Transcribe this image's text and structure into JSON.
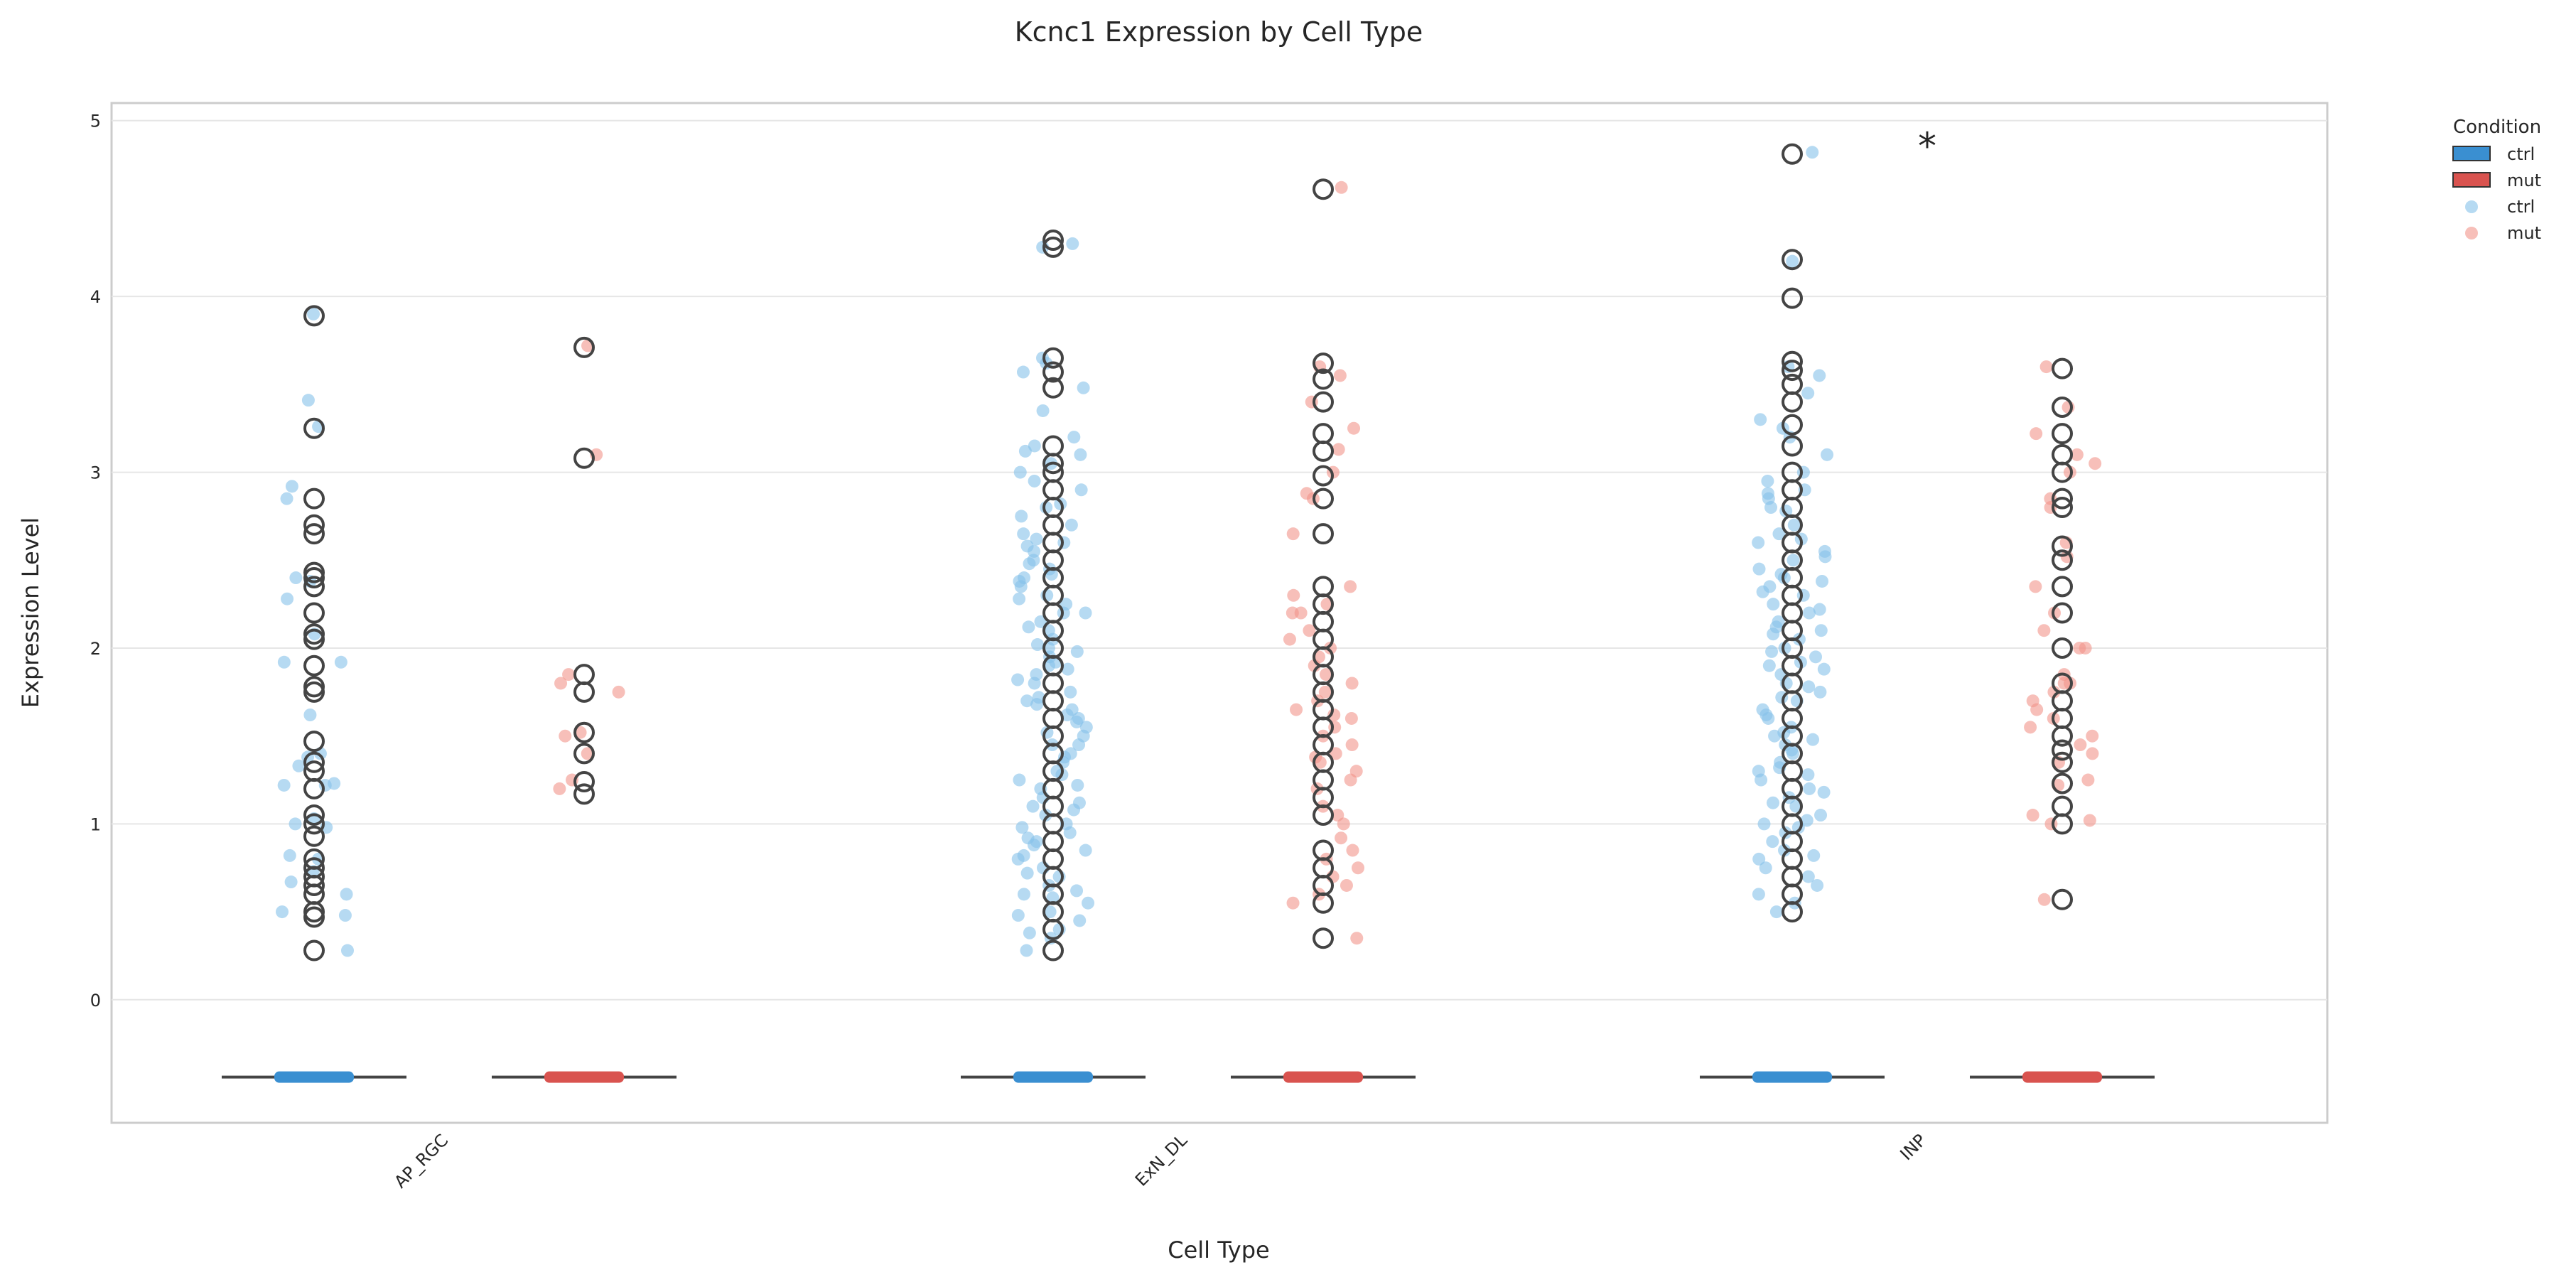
{
  "chart_data": {
    "type": "box",
    "title": "Kcnc1 Expression by Cell Type",
    "xlabel": "Cell Type",
    "ylabel": "Expression Level",
    "ylim": [
      -0.7,
      5.1
    ],
    "yticks": [
      0,
      1,
      2,
      3,
      4,
      5
    ],
    "grid": true,
    "categories": [
      "AP_RGC",
      "ExN_DL",
      "INP"
    ],
    "conditions": [
      "ctrl",
      "mut"
    ],
    "colors": {
      "ctrl": "#3a8fd1",
      "mut": "#d9534f",
      "ctrl_points": "#85c1e9",
      "mut_points": "#f1948a",
      "outlier": "#444444"
    },
    "legend": {
      "title": "Condition",
      "placement": "outside-top-right",
      "entries": [
        {
          "label": "ctrl",
          "kind": "patch",
          "color": "#3a8fd1"
        },
        {
          "label": "mut",
          "kind": "patch",
          "color": "#d9534f"
        },
        {
          "label": "ctrl",
          "kind": "point",
          "color": "#85c1e9"
        },
        {
          "label": "mut",
          "kind": "point",
          "color": "#f1948a"
        }
      ]
    },
    "annotations": [
      {
        "text": "*",
        "category": "INP"
      }
    ],
    "boxes": [
      {
        "category": "AP_RGC",
        "condition": "ctrl",
        "q1": -0.44,
        "median": -0.44,
        "q3": -0.44,
        "whisker_low": -0.44,
        "whisker_high": -0.44,
        "outliers": [
          0.28,
          0.47,
          0.5,
          0.6,
          0.65,
          0.7,
          0.75,
          0.8,
          0.93,
          1.0,
          1.05,
          1.2,
          1.3,
          1.35,
          1.47,
          1.75,
          1.78,
          1.9,
          2.05,
          2.08,
          2.2,
          2.35,
          2.4,
          2.43,
          2.65,
          2.7,
          2.85,
          3.25,
          3.89
        ]
      },
      {
        "category": "AP_RGC",
        "condition": "mut",
        "q1": -0.44,
        "median": -0.44,
        "q3": -0.44,
        "whisker_low": -0.44,
        "whisker_high": -0.44,
        "outliers": [
          1.17,
          1.24,
          1.4,
          1.52,
          1.75,
          1.85,
          3.08,
          3.71
        ]
      },
      {
        "category": "ExN_DL",
        "condition": "ctrl",
        "q1": -0.44,
        "median": -0.44,
        "q3": -0.44,
        "whisker_low": -0.44,
        "whisker_high": -0.44,
        "outliers": [
          0.28,
          0.4,
          0.5,
          0.6,
          0.7,
          0.8,
          0.9,
          1.0,
          1.1,
          1.2,
          1.3,
          1.4,
          1.5,
          1.6,
          1.7,
          1.8,
          1.9,
          2.0,
          2.1,
          2.2,
          2.3,
          2.4,
          2.5,
          2.6,
          2.7,
          2.8,
          2.9,
          3.0,
          3.05,
          3.15,
          3.48,
          3.57,
          3.65,
          4.28,
          4.32
        ]
      },
      {
        "category": "ExN_DL",
        "condition": "mut",
        "q1": -0.44,
        "median": -0.44,
        "q3": -0.44,
        "whisker_low": -0.44,
        "whisker_high": -0.44,
        "outliers": [
          0.35,
          0.55,
          0.65,
          0.75,
          0.85,
          1.05,
          1.15,
          1.25,
          1.35,
          1.45,
          1.55,
          1.65,
          1.75,
          1.85,
          1.95,
          2.05,
          2.15,
          2.25,
          2.35,
          2.65,
          2.85,
          2.98,
          3.12,
          3.22,
          3.4,
          3.53,
          3.62,
          4.61
        ]
      },
      {
        "category": "INP",
        "condition": "ctrl",
        "q1": -0.44,
        "median": -0.44,
        "q3": -0.44,
        "whisker_low": -0.44,
        "whisker_high": -0.44,
        "outliers": [
          0.5,
          0.6,
          0.7,
          0.8,
          0.9,
          1.0,
          1.1,
          1.2,
          1.3,
          1.4,
          1.5,
          1.6,
          1.7,
          1.8,
          1.9,
          2.0,
          2.1,
          2.2,
          2.3,
          2.4,
          2.5,
          2.6,
          2.7,
          2.8,
          2.9,
          3.0,
          3.15,
          3.27,
          3.4,
          3.5,
          3.58,
          3.63,
          3.99,
          4.21,
          4.81
        ]
      },
      {
        "category": "INP",
        "condition": "mut",
        "q1": -0.44,
        "median": -0.44,
        "q3": -0.44,
        "whisker_low": -0.44,
        "whisker_high": -0.44,
        "outliers": [
          0.57,
          1.0,
          1.1,
          1.23,
          1.35,
          1.42,
          1.5,
          1.6,
          1.7,
          1.8,
          2.0,
          2.2,
          2.35,
          2.5,
          2.58,
          2.8,
          2.85,
          3.0,
          3.1,
          3.22,
          3.37,
          3.59
        ]
      }
    ],
    "points": [
      {
        "category": "AP_RGC",
        "condition": "ctrl",
        "values": [
          3.9,
          3.26,
          2.85,
          2.4,
          2.38,
          2.08,
          1.92,
          1.92,
          1.4,
          1.38,
          1.33,
          1.23,
          1.22,
          1.22,
          1.03,
          1.0,
          0.98,
          0.82,
          0.8,
          0.73,
          0.67,
          0.5,
          0.48,
          0.28,
          2.28,
          1.62,
          0.6,
          2.92,
          3.41
        ]
      },
      {
        "category": "AP_RGC",
        "condition": "mut",
        "values": [
          3.72,
          3.1,
          1.85,
          1.8,
          1.75,
          1.52,
          1.5,
          1.4,
          1.25,
          1.2
        ]
      },
      {
        "category": "ExN_DL",
        "condition": "ctrl",
        "values": [
          4.3,
          4.28,
          3.65,
          3.57,
          3.48,
          3.15,
          3.1,
          3.05,
          2.95,
          2.82,
          2.8,
          2.7,
          2.6,
          2.58,
          2.5,
          2.45,
          2.4,
          2.35,
          2.3,
          2.25,
          2.2,
          2.2,
          2.15,
          2.1,
          2.05,
          2.0,
          1.98,
          1.95,
          1.9,
          1.85,
          1.8,
          1.75,
          1.7,
          1.68,
          1.65,
          1.6,
          1.55,
          1.5,
          1.45,
          1.4,
          1.35,
          1.3,
          1.25,
          1.2,
          1.15,
          1.1,
          1.05,
          1.0,
          0.95,
          0.9,
          0.85,
          0.8,
          0.75,
          0.7,
          0.65,
          0.6,
          0.55,
          0.5,
          0.45,
          0.4,
          0.35,
          0.28,
          3.2,
          2.9,
          2.62,
          2.38,
          2.12,
          1.88,
          1.62,
          1.38,
          1.12,
          0.88,
          0.62,
          0.38,
          3.0,
          2.65,
          2.28,
          1.92,
          1.58,
          1.22,
          0.92,
          0.58,
          2.75,
          2.02,
          1.45,
          0.98,
          3.35,
          2.55,
          1.72,
          1.08,
          0.72,
          2.48,
          1.82,
          1.28,
          0.82,
          3.62,
          3.12,
          2.42,
          1.52,
          0.48
        ]
      },
      {
        "category": "ExN_DL",
        "condition": "mut",
        "values": [
          4.62,
          3.6,
          3.55,
          3.4,
          3.25,
          3.13,
          3.0,
          2.88,
          2.85,
          2.65,
          2.35,
          2.3,
          2.2,
          2.2,
          2.1,
          2.05,
          2.0,
          1.95,
          1.9,
          1.85,
          1.8,
          1.75,
          1.7,
          1.65,
          1.6,
          1.55,
          1.5,
          1.45,
          1.4,
          1.35,
          1.3,
          1.25,
          1.2,
          1.1,
          1.05,
          1.0,
          0.85,
          0.8,
          0.75,
          0.7,
          0.65,
          0.6,
          0.55,
          0.35,
          2.25,
          1.62,
          1.38,
          0.92
        ]
      },
      {
        "category": "INP",
        "condition": "ctrl",
        "values": [
          4.82,
          4.2,
          3.6,
          3.55,
          3.45,
          3.3,
          3.25,
          3.2,
          3.1,
          3.0,
          2.95,
          2.9,
          2.85,
          2.8,
          2.7,
          2.65,
          2.6,
          2.55,
          2.5,
          2.45,
          2.4,
          2.35,
          2.3,
          2.25,
          2.2,
          2.15,
          2.1,
          2.05,
          2.0,
          1.95,
          1.9,
          1.85,
          1.8,
          1.75,
          1.7,
          1.65,
          1.6,
          1.55,
          1.5,
          1.45,
          1.4,
          1.35,
          1.3,
          1.25,
          1.2,
          1.15,
          1.1,
          1.05,
          1.0,
          0.95,
          0.9,
          0.85,
          0.8,
          0.75,
          0.7,
          0.65,
          0.6,
          0.55,
          0.5,
          2.42,
          2.08,
          1.78,
          1.42,
          1.12,
          2.62,
          2.22,
          1.88,
          1.52,
          1.18,
          0.82,
          2.78,
          2.32,
          1.98,
          1.62,
          1.28,
          0.98,
          2.52,
          2.12,
          1.72,
          1.32,
          2.88,
          2.38,
          1.92,
          1.48,
          1.02
        ]
      },
      {
        "category": "INP",
        "condition": "mut",
        "values": [
          3.6,
          3.37,
          3.22,
          3.1,
          3.05,
          3.0,
          2.85,
          2.8,
          2.6,
          2.52,
          2.35,
          2.2,
          2.0,
          2.0,
          1.85,
          1.8,
          1.8,
          1.75,
          1.7,
          1.65,
          1.6,
          1.5,
          1.45,
          1.4,
          1.35,
          1.25,
          1.22,
          1.05,
          1.02,
          1.0,
          0.57,
          2.1,
          1.55
        ]
      }
    ]
  }
}
